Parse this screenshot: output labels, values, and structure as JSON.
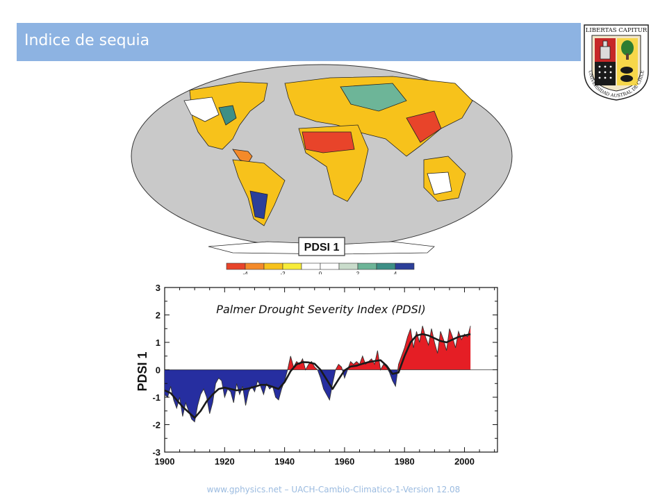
{
  "header": {
    "title": "Indice de sequia"
  },
  "logo": {
    "motto": "LIBERTAS CAPITUR",
    "ring_text": "UNIVERSIDAD AUSTRAL DE CHILE"
  },
  "map": {
    "label": "PDSI 1",
    "colorbar": {
      "colors": [
        "#e8442a",
        "#f48a2a",
        "#f7c21b",
        "#f7ec3a",
        "#ffffff",
        "#ffffff",
        "#c9dccb",
        "#6db598",
        "#3d8f86",
        "#2c3f99"
      ],
      "tick_labels": [
        "-4",
        "-2",
        "0",
        "2",
        "4"
      ]
    }
  },
  "chart_data": {
    "type": "area",
    "title": "Palmer Drought Severity Index (PDSI)",
    "xlabel": "",
    "ylabel": "PDSI 1",
    "xlim": [
      1900,
      2011
    ],
    "ylim": [
      -3,
      3
    ],
    "x_ticks": [
      "1900",
      "1920",
      "1940",
      "1960",
      "1980",
      "2000"
    ],
    "y_ticks": [
      "-3",
      "-2",
      "-1",
      "0",
      "1",
      "2",
      "3"
    ],
    "positive_color": "#e51e25",
    "negative_color": "#262ea0",
    "series": [
      {
        "kind": "annual",
        "x": [
          1900,
          1901,
          1902,
          1903,
          1904,
          1905,
          1906,
          1907,
          1908,
          1909,
          1910,
          1911,
          1912,
          1913,
          1914,
          1915,
          1916,
          1917,
          1918,
          1919,
          1920,
          1921,
          1922,
          1923,
          1924,
          1925,
          1926,
          1927,
          1928,
          1929,
          1930,
          1931,
          1932,
          1933,
          1934,
          1935,
          1936,
          1937,
          1938,
          1939,
          1940,
          1941,
          1942,
          1943,
          1944,
          1945,
          1946,
          1947,
          1948,
          1949,
          1950,
          1951,
          1952,
          1953,
          1954,
          1955,
          1956,
          1957,
          1958,
          1959,
          1960,
          1961,
          1962,
          1963,
          1964,
          1965,
          1966,
          1967,
          1968,
          1969,
          1970,
          1971,
          1972,
          1973,
          1974,
          1975,
          1976,
          1977,
          1978,
          1979,
          1980,
          1981,
          1982,
          1983,
          1984,
          1985,
          1986,
          1987,
          1988,
          1989,
          1990,
          1991,
          1992,
          1993,
          1994,
          1995,
          1996,
          1997,
          1998,
          1999,
          2000,
          2001,
          2002
        ],
        "y": [
          -0.9,
          -1.0,
          -0.6,
          -1.1,
          -1.4,
          -1.0,
          -1.7,
          -1.2,
          -1.5,
          -1.8,
          -1.9,
          -1.3,
          -0.9,
          -0.7,
          -1.0,
          -1.6,
          -1.2,
          -0.5,
          -0.3,
          -0.4,
          -1.0,
          -0.7,
          -0.8,
          -1.2,
          -0.5,
          -0.9,
          -0.6,
          -1.3,
          -0.8,
          -0.6,
          -0.8,
          -0.4,
          -0.6,
          -0.9,
          -0.5,
          -0.7,
          -0.6,
          -1.0,
          -1.1,
          -0.7,
          -0.4,
          0.0,
          0.5,
          0.1,
          0.3,
          0.2,
          0.4,
          0.0,
          0.2,
          0.3,
          0.1,
          0.0,
          -0.3,
          -0.7,
          -0.9,
          -1.1,
          -0.5,
          0.0,
          0.2,
          0.1,
          -0.3,
          0.0,
          0.3,
          0.2,
          0.3,
          0.2,
          0.5,
          0.2,
          0.3,
          0.4,
          0.2,
          0.7,
          0.0,
          0.2,
          0.1,
          -0.1,
          -0.4,
          -0.6,
          0.2,
          0.5,
          0.8,
          1.2,
          1.5,
          0.8,
          1.4,
          1.0,
          1.6,
          1.2,
          0.9,
          1.5,
          1.0,
          0.6,
          1.4,
          1.1,
          0.7,
          1.5,
          1.2,
          0.8,
          1.4,
          1.1,
          1.3,
          1.2,
          1.6
        ]
      },
      {
        "kind": "smoothed",
        "x": [
          1900,
          1902,
          1904,
          1906,
          1908,
          1910,
          1912,
          1914,
          1916,
          1918,
          1920,
          1922,
          1924,
          1926,
          1928,
          1930,
          1932,
          1934,
          1936,
          1938,
          1940,
          1942,
          1944,
          1946,
          1948,
          1950,
          1952,
          1954,
          1956,
          1958,
          1960,
          1962,
          1964,
          1966,
          1968,
          1970,
          1972,
          1974,
          1976,
          1978,
          1980,
          1982,
          1984,
          1986,
          1988,
          1990,
          1992,
          1994,
          1996,
          1998,
          2000,
          2002
        ],
        "y": [
          -0.75,
          -0.85,
          -1.1,
          -1.35,
          -1.55,
          -1.75,
          -1.5,
          -1.15,
          -0.9,
          -0.7,
          -0.65,
          -0.7,
          -0.75,
          -0.72,
          -0.68,
          -0.62,
          -0.55,
          -0.55,
          -0.62,
          -0.7,
          -0.45,
          -0.05,
          0.2,
          0.28,
          0.27,
          0.22,
          0.0,
          -0.35,
          -0.7,
          -0.35,
          -0.02,
          0.12,
          0.15,
          0.22,
          0.28,
          0.32,
          0.35,
          0.15,
          -0.15,
          -0.1,
          0.5,
          1.0,
          1.25,
          1.3,
          1.25,
          1.15,
          1.05,
          1.0,
          1.1,
          1.2,
          1.25,
          1.3
        ]
      }
    ]
  },
  "footer": {
    "text": "www.gphysics.net – UACH-Cambio-Climatico-1-Version 12.08"
  }
}
